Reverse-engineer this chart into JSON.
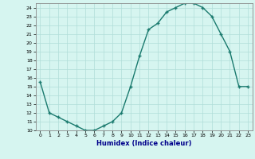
{
  "x": [
    0,
    1,
    2,
    3,
    4,
    5,
    6,
    7,
    8,
    9,
    10,
    11,
    12,
    13,
    14,
    15,
    16,
    17,
    18,
    19,
    20,
    21,
    22,
    23
  ],
  "y": [
    15.5,
    12.0,
    11.5,
    11.0,
    10.5,
    10.0,
    10.0,
    10.5,
    11.0,
    12.0,
    15.0,
    18.5,
    21.5,
    22.2,
    23.5,
    24.0,
    24.5,
    24.5,
    24.0,
    23.0,
    21.0,
    19.0,
    15.0,
    15.0
  ],
  "xlim": [
    -0.5,
    23.5
  ],
  "ylim": [
    10,
    24.5
  ],
  "yticks": [
    10,
    11,
    12,
    13,
    14,
    15,
    16,
    17,
    18,
    19,
    20,
    21,
    22,
    23,
    24
  ],
  "xticks": [
    0,
    1,
    2,
    3,
    4,
    5,
    6,
    7,
    8,
    9,
    10,
    11,
    12,
    13,
    14,
    15,
    16,
    17,
    18,
    19,
    20,
    21,
    22,
    23
  ],
  "xlabel": "Humidex (Indice chaleur)",
  "line_color": "#1a7a6e",
  "bg_color": "#d6f5f0",
  "grid_color": "#b0ddd8",
  "marker": "+",
  "label_color": "#00008b"
}
